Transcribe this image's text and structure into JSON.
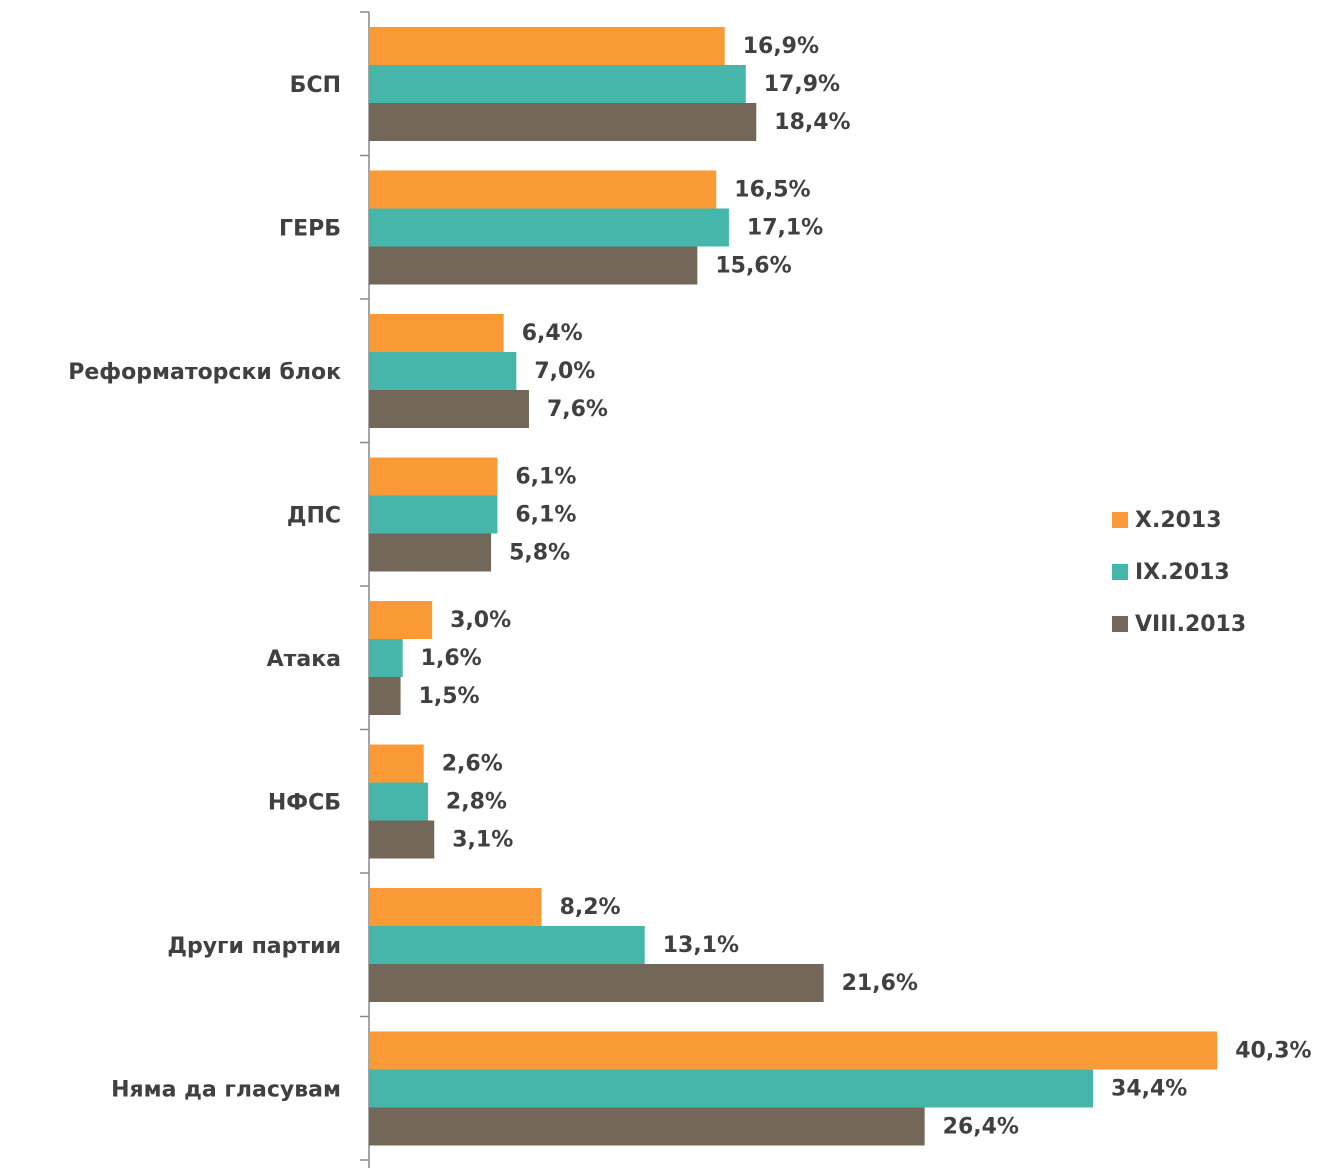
{
  "chart_data": {
    "type": "hbar",
    "categories": [
      "БСП",
      "ГЕРБ",
      "Реформаторски блок",
      "ДПС",
      "Атака",
      "НФСБ",
      "Други партии",
      "Няма да гласувам"
    ],
    "xlim": [
      0,
      42
    ],
    "legend": "right",
    "series": [
      {
        "name": "X.2013",
        "color": "#f99a36",
        "values": [
          16.9,
          16.5,
          6.4,
          6.1,
          3.0,
          2.6,
          8.2,
          40.3
        ],
        "value_labels": [
          "16,9%",
          "16,5%",
          "6,4%",
          "6,1%",
          "3,0%",
          "2,6%",
          "8,2%",
          "40,3%"
        ]
      },
      {
        "name": "IX.2013",
        "color": "#46b5aa",
        "values": [
          17.9,
          17.1,
          7.0,
          6.1,
          1.6,
          2.8,
          13.1,
          34.4
        ],
        "value_labels": [
          "17,9%",
          "17,1%",
          "7,0%",
          "6,1%",
          "1,6%",
          "2,8%",
          "13,1%",
          "34,4%"
        ]
      },
      {
        "name": "VIII.2013",
        "color": "#726758",
        "values": [
          18.4,
          15.6,
          7.6,
          5.8,
          1.5,
          3.1,
          21.6,
          26.4
        ],
        "value_labels": [
          "18,4%",
          "15,6%",
          "7,6%",
          "5,8%",
          "1,5%",
          "3,1%",
          "21,6%",
          "26,4%"
        ]
      }
    ]
  }
}
